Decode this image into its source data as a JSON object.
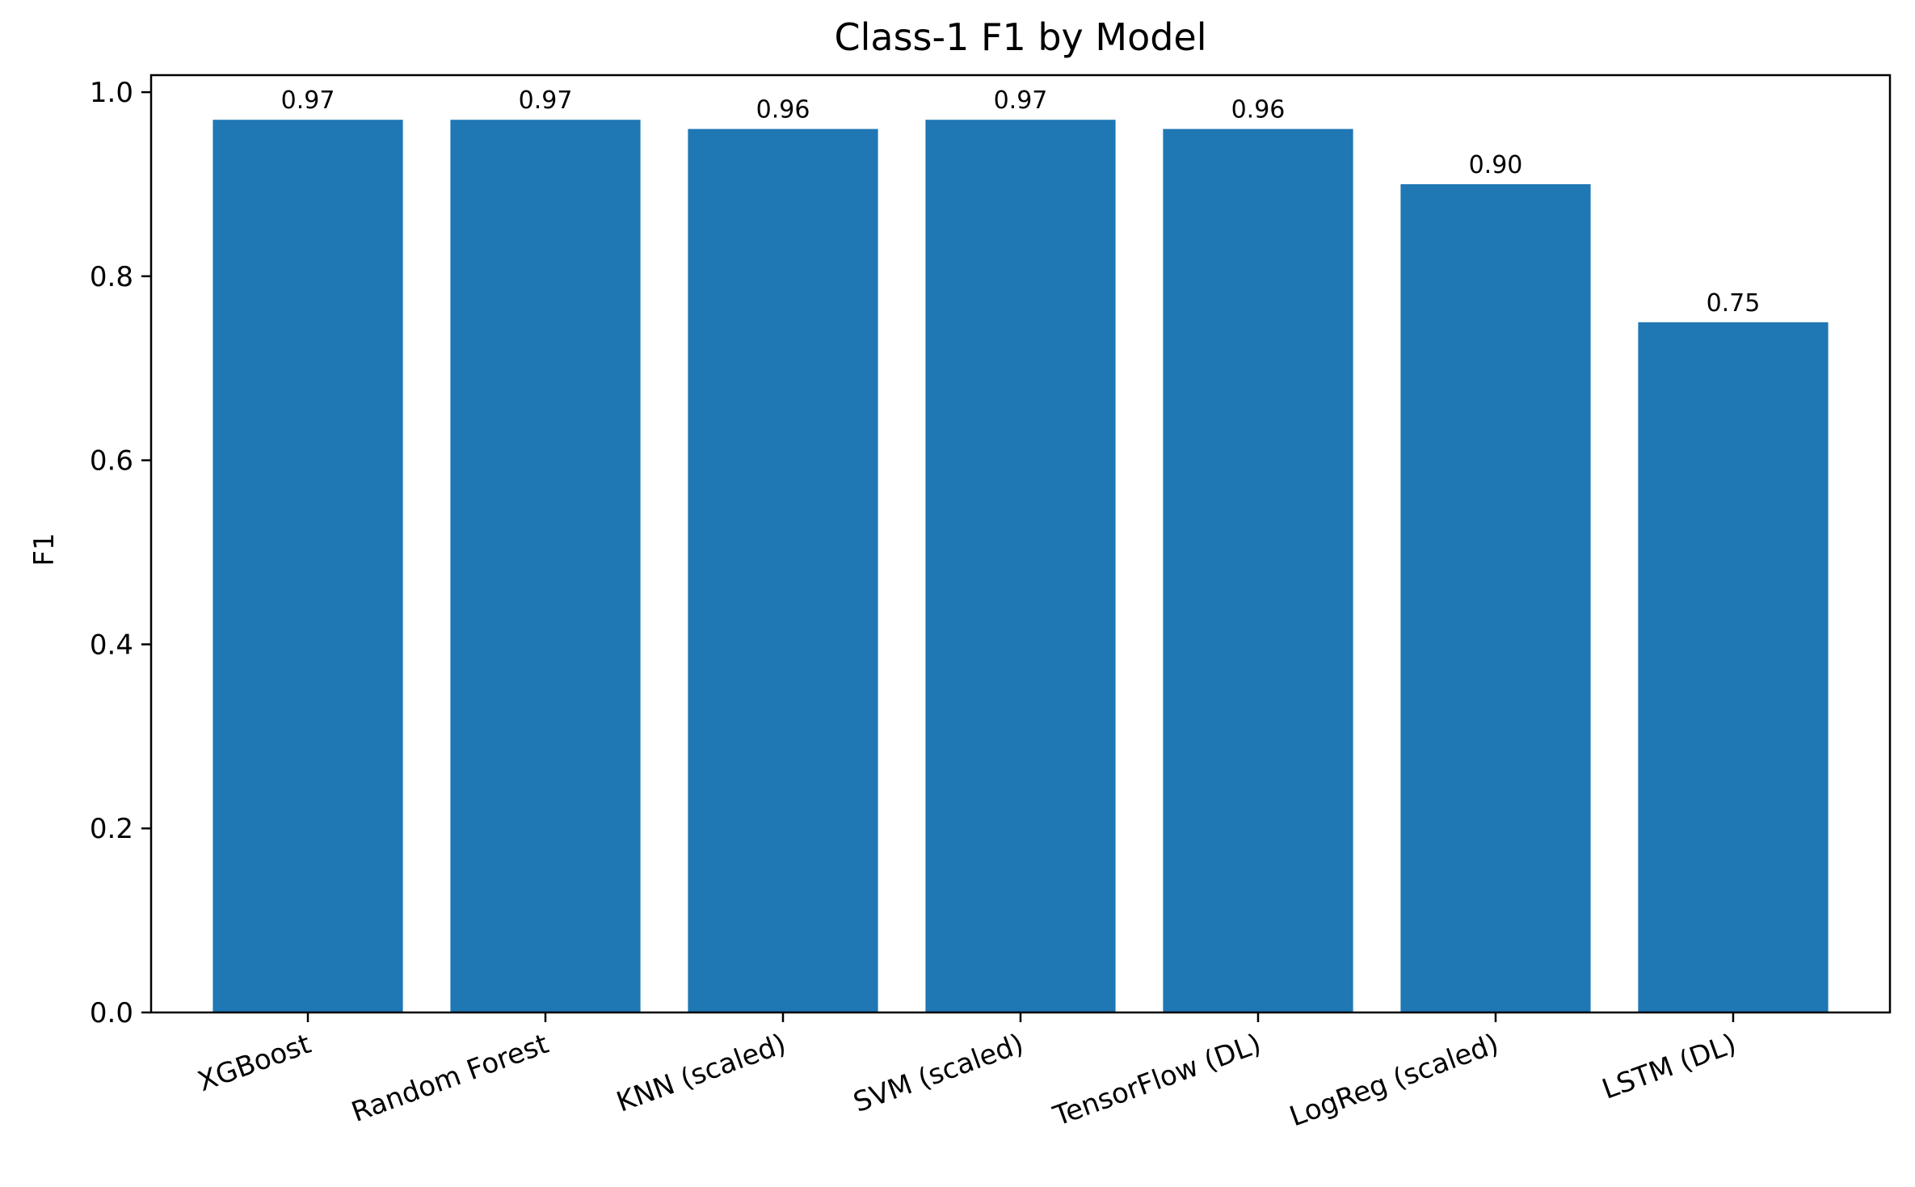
{
  "chart_data": {
    "type": "bar",
    "title": "Class-1 F1 by Model",
    "xlabel": "",
    "ylabel": "F1",
    "categories": [
      "XGBoost",
      "Random Forest",
      "KNN (scaled)",
      "SVM (scaled)",
      "TensorFlow (DL)",
      "LogReg (scaled)",
      "LSTM (DL)"
    ],
    "values": [
      0.97,
      0.97,
      0.96,
      0.97,
      0.96,
      0.9,
      0.75
    ],
    "value_labels": [
      "0.97",
      "0.97",
      "0.96",
      "0.97",
      "0.96",
      "0.90",
      "0.75"
    ],
    "ylim": [
      0,
      1.0185
    ],
    "yticks": [
      0.0,
      0.2,
      0.4,
      0.6,
      0.8,
      1.0
    ],
    "ytick_labels": [
      "0.0",
      "0.2",
      "0.4",
      "0.6",
      "0.8",
      "1.0"
    ],
    "grid": false,
    "legend": "none",
    "bar_color": "#1f77b4"
  }
}
